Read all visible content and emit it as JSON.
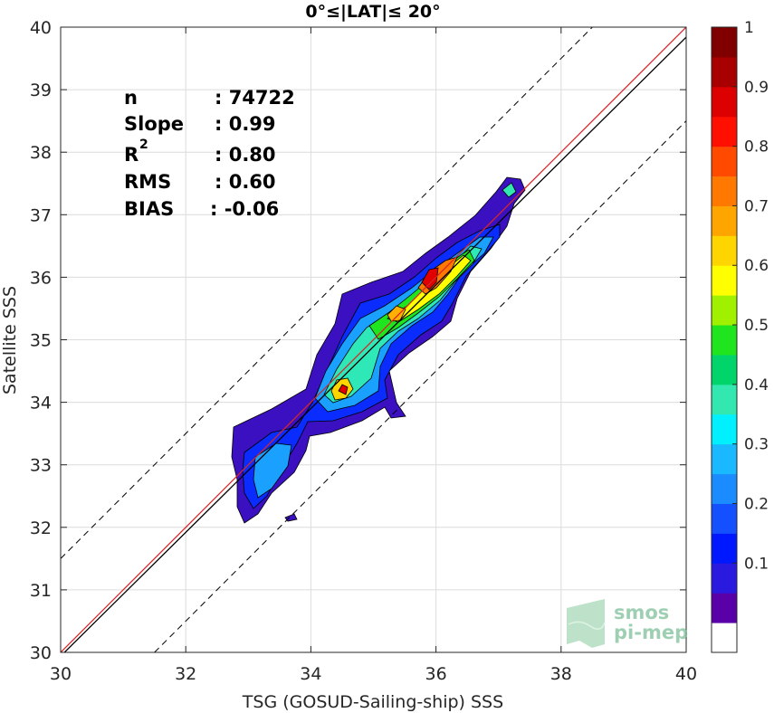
{
  "chart_data": {
    "type": "heatmap",
    "subtype": "density-contour scatter comparison",
    "title": "0°≤|LAT|≤ 20°",
    "xlabel": "TSG (GOSUD-Sailing-ship) SSS",
    "ylabel": "Satellite SSS",
    "xlim": [
      30,
      40
    ],
    "ylim": [
      30,
      40
    ],
    "xticks": [
      "30",
      "32",
      "34",
      "36",
      "38",
      "40"
    ],
    "yticks": [
      "30",
      "31",
      "32",
      "33",
      "34",
      "35",
      "36",
      "37",
      "38",
      "39",
      "40"
    ],
    "grid": true,
    "stats": [
      {
        "label": "n",
        "value": ": 74722"
      },
      {
        "label": "Slope",
        "value": ": 0.99"
      },
      {
        "label": "R",
        "sup": "2",
        "value": ": 0.80"
      },
      {
        "label": "RMS",
        "value": ": 0.60"
      },
      {
        "label": "BIAS",
        "value": ": -0.06"
      }
    ],
    "reference_lines": {
      "one_to_one": {
        "color": "#d62728",
        "from": [
          30,
          30
        ],
        "to": [
          40,
          40
        ]
      },
      "fit": {
        "color": "#000000",
        "slope": 0.99,
        "intercept": 0.24
      },
      "offset_bounds": {
        "style": "dashed",
        "offset": 1.5
      }
    },
    "colorbar": {
      "ticks": [
        "0.1",
        "0.2",
        "0.3",
        "0.4",
        "0.5",
        "0.6",
        "0.7",
        "0.8",
        "0.9",
        "1"
      ],
      "colors": [
        "#ffffff",
        "#5a00a8",
        "#2a1adf",
        "#0018ff",
        "#1550ff",
        "#1a8cff",
        "#19b8ff",
        "#00f0ff",
        "#33e8b0",
        "#00d46a",
        "#1fe51f",
        "#a0f000",
        "#ffff00",
        "#ffd500",
        "#ffa500",
        "#ff7800",
        "#ff4a00",
        "#ff0f00",
        "#dc0000",
        "#a80000",
        "#800000"
      ]
    },
    "density_peaks": [
      {
        "x": 35.9,
        "y": 35.95,
        "level": 1.0
      },
      {
        "x": 35.35,
        "y": 35.4,
        "level": 0.8
      },
      {
        "x": 34.55,
        "y": 34.15,
        "level": 0.75
      },
      {
        "x": 36.4,
        "y": 36.45,
        "level": 0.7
      },
      {
        "x": 33.3,
        "y": 32.9,
        "level": 0.35
      },
      {
        "x": 37.1,
        "y": 37.35,
        "level": 0.3
      }
    ]
  },
  "logo": {
    "line1": "smos",
    "line2": "pi-mep"
  }
}
